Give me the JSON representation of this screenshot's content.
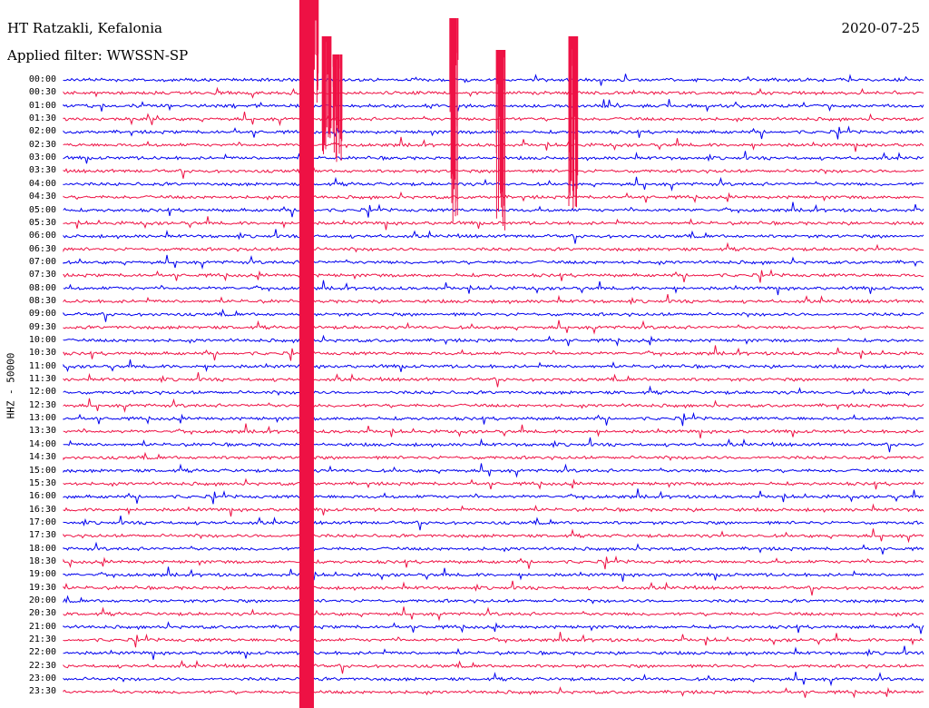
{
  "header": {
    "station": "HT Ratzakli, Kefalonia",
    "date": "2020-07-25",
    "filter": "Applied filter: WWSSN-SP"
  },
  "axis": {
    "channel_label": "HHZ - 50000"
  },
  "trace_colors": [
    "#0000ee",
    "#ee1144"
  ],
  "time_labels": [
    "00:00",
    "00:30",
    "01:00",
    "01:30",
    "02:00",
    "02:30",
    "03:00",
    "03:30",
    "04:00",
    "04:30",
    "05:00",
    "05:30",
    "06:00",
    "06:30",
    "07:00",
    "07:30",
    "08:00",
    "08:30",
    "09:00",
    "09:30",
    "10:00",
    "10:30",
    "11:00",
    "11:30",
    "12:00",
    "12:30",
    "13:00",
    "13:30",
    "14:00",
    "14:30",
    "15:00",
    "15:30",
    "16:00",
    "16:30",
    "17:00",
    "17:30",
    "18:00",
    "18:30",
    "19:00",
    "19:30",
    "20:00",
    "20:30",
    "21:00",
    "21:30",
    "22:00",
    "22:30",
    "23:00",
    "23:30"
  ]
}
